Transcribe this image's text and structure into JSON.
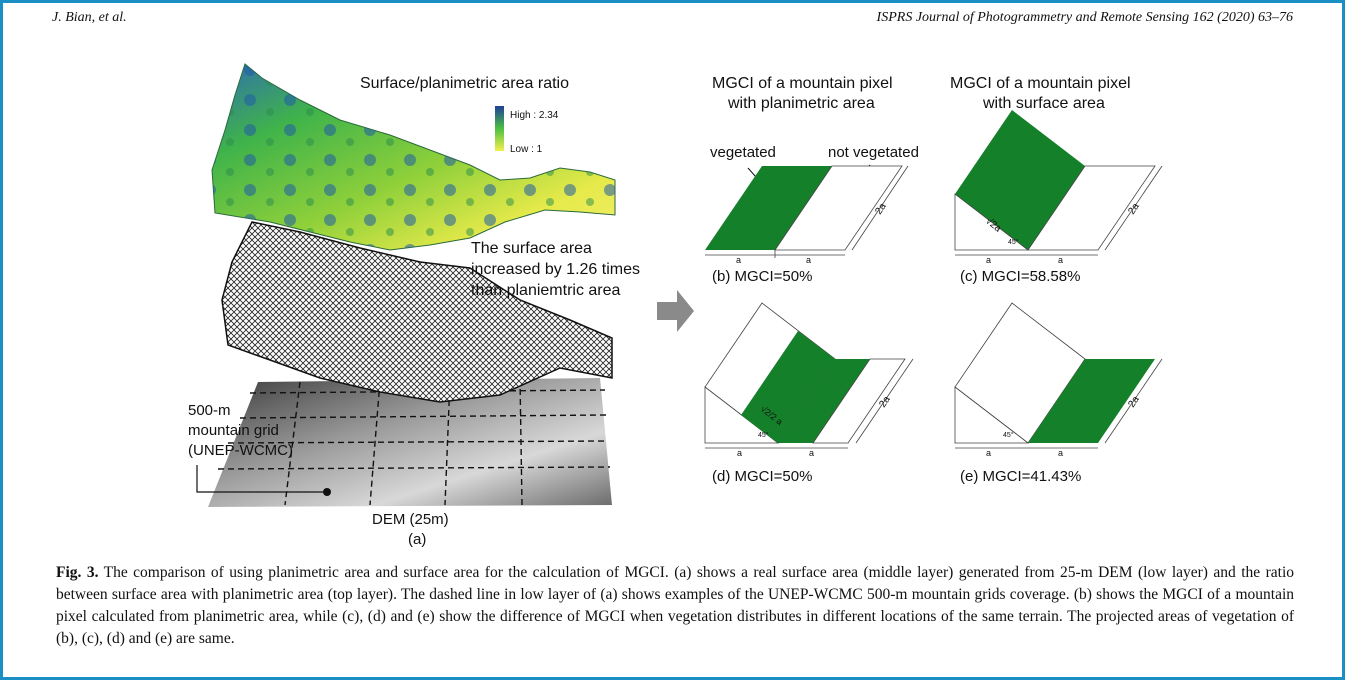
{
  "header": {
    "authors": "J. Bian, et al.",
    "journal": "ISPRS Journal of Photogrammetry and Remote Sensing 162 (2020) 63–76"
  },
  "panel_a": {
    "title": "Surface/planimetric area ratio",
    "legend_high": "High : 2.34",
    "legend_low": "Low : 1",
    "note_line1": "The surface area",
    "note_line2": "increased by 1.26 times",
    "note_line3": "than planiemtric area",
    "grid_label_line1": "500-m",
    "grid_label_line2": "mountain  grid",
    "grid_label_line3": "(UNEP-WCMC)",
    "dem_label": "DEM (25m)",
    "panel_label": "(a)"
  },
  "panel_b": {
    "title_line1": "MGCI of a mountain pixel",
    "title_line2": "with planimetric area",
    "vegetated": "vegetated",
    "not_vegetated": "not vegetated",
    "dim_a": "a",
    "dim_2a": "2a",
    "result": "(b) MGCI=50%"
  },
  "panel_c": {
    "title_line1": "MGCI of a mountain pixel",
    "title_line2": "with surface area",
    "slope_label": "√2a",
    "angle": "45°",
    "dim_a": "a",
    "dim_2a": "2a",
    "result": "(c) MGCI=58.58%"
  },
  "panel_d": {
    "slope_label": "√2/2 a",
    "angle": "45°",
    "dim_a": "a",
    "dim_2a": "2a",
    "result": "(d) MGCI=50%"
  },
  "panel_e": {
    "angle": "45°",
    "dim_a": "a",
    "dim_2a": "2a",
    "result": "(e) MGCI=41.43%"
  },
  "caption": {
    "label": "Fig. 3.",
    "text": "The comparison of using planimetric area and surface area for the calculation of MGCI. (a) shows a real surface area (middle layer) generated from 25-m DEM (low layer) and the ratio between surface area with planimetric area (top layer). The dashed line in low layer of (a) shows examples of the UNEP-WCMC 500-m mountain grids coverage. (b) shows the MGCI of a mountain pixel calculated from planimetric area, while (c), (d) and (e) show the difference of MGCI when vegetation distributes in different locations of the same terrain. The projected areas of vegetation of (b), (c), (d) and (e) are same."
  },
  "colors": {
    "frame": "#1a8fc4",
    "vegetation": "#15802a",
    "arrow": "#8a8a8a"
  }
}
